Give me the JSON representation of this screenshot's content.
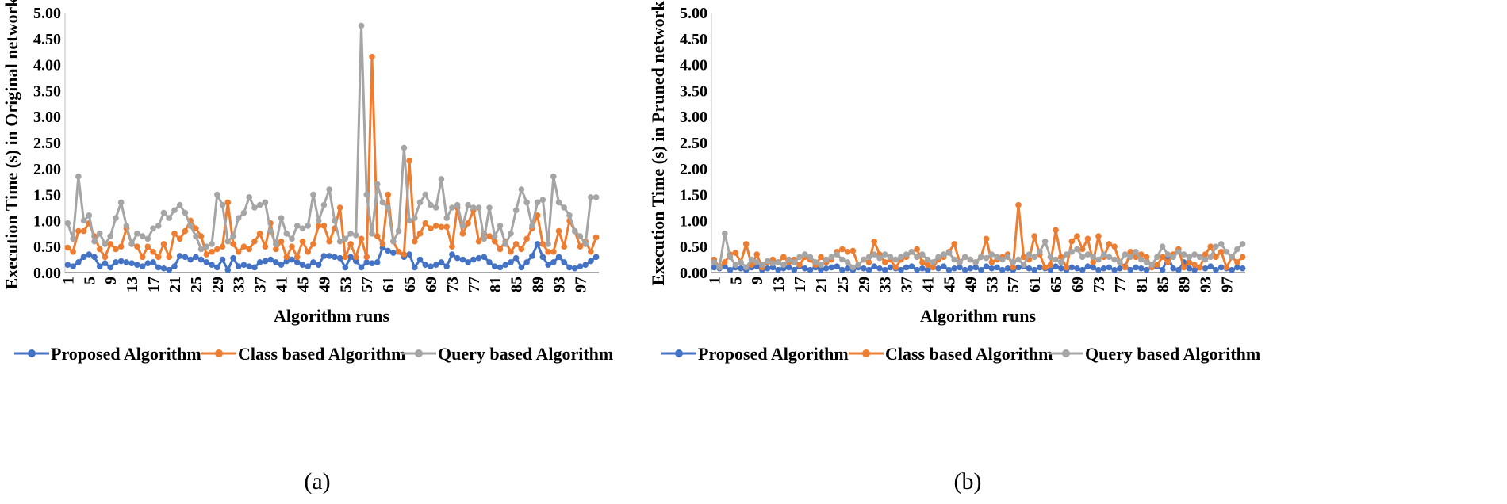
{
  "chart_data": [
    {
      "type": "line",
      "panel_label": "(a)",
      "title": "",
      "xlabel": "Algorithm runs",
      "ylabel": "Execution Time (s) in Original network",
      "ylim": [
        0,
        5
      ],
      "yticks": [
        "0.00",
        "0.50",
        "1.00",
        "1.50",
        "2.00",
        "2.50",
        "3.00",
        "3.50",
        "4.00",
        "4.50",
        "5.00"
      ],
      "xticks": [
        "1",
        "5",
        "9",
        "13",
        "17",
        "21",
        "25",
        "29",
        "33",
        "37",
        "41",
        "45",
        "49",
        "53",
        "57",
        "61",
        "65",
        "69",
        "73",
        "77",
        "81",
        "85",
        "89",
        "93",
        "97"
      ],
      "x_count": 100,
      "legend_position": "bottom",
      "series": [
        {
          "name": "Proposed Algorithm",
          "color": "#4472C4",
          "values": [
            0.15,
            0.12,
            0.2,
            0.3,
            0.35,
            0.3,
            0.12,
            0.18,
            0.1,
            0.2,
            0.22,
            0.2,
            0.18,
            0.15,
            0.12,
            0.18,
            0.2,
            0.1,
            0.08,
            0.05,
            0.12,
            0.32,
            0.3,
            0.25,
            0.3,
            0.25,
            0.2,
            0.15,
            0.1,
            0.25,
            0.05,
            0.28,
            0.12,
            0.15,
            0.12,
            0.1,
            0.2,
            0.22,
            0.25,
            0.2,
            0.15,
            0.22,
            0.25,
            0.2,
            0.15,
            0.12,
            0.2,
            0.15,
            0.32,
            0.32,
            0.3,
            0.28,
            0.1,
            0.3,
            0.22,
            0.1,
            0.2,
            0.18,
            0.2,
            0.48,
            0.42,
            0.38,
            0.4,
            0.3,
            0.35,
            0.1,
            0.25,
            0.15,
            0.12,
            0.15,
            0.2,
            0.12,
            0.35,
            0.28,
            0.25,
            0.2,
            0.25,
            0.28,
            0.3,
            0.2,
            0.12,
            0.1,
            0.15,
            0.2,
            0.28,
            0.1,
            0.2,
            0.32,
            0.55,
            0.3,
            0.15,
            0.2,
            0.3,
            0.2,
            0.1,
            0.08,
            0.12,
            0.15,
            0.22,
            0.3
          ]
        },
        {
          "name": "Class based Algorithm",
          "color": "#ED7D31",
          "values": [
            0.48,
            0.4,
            0.8,
            0.8,
            0.95,
            0.7,
            0.45,
            0.3,
            0.55,
            0.45,
            0.5,
            0.85,
            0.55,
            0.5,
            0.3,
            0.5,
            0.4,
            0.3,
            0.55,
            0.3,
            0.75,
            0.65,
            0.8,
            1.0,
            0.85,
            0.7,
            0.35,
            0.4,
            0.45,
            0.5,
            1.35,
            0.55,
            0.4,
            0.5,
            0.45,
            0.6,
            0.75,
            0.5,
            0.95,
            0.45,
            0.6,
            0.3,
            0.5,
            0.3,
            0.6,
            0.4,
            0.55,
            0.9,
            0.9,
            0.6,
            0.85,
            1.25,
            0.3,
            0.55,
            0.3,
            0.65,
            0.3,
            4.15,
            0.7,
            0.55,
            1.5,
            0.6,
            0.4,
            0.35,
            2.15,
            0.6,
            0.75,
            0.95,
            0.85,
            0.9,
            0.88,
            0.88,
            0.5,
            1.25,
            0.75,
            0.95,
            1.2,
            0.6,
            0.75,
            0.7,
            0.6,
            0.45,
            0.6,
            0.4,
            0.55,
            0.45,
            0.65,
            0.85,
            1.1,
            0.55,
            0.4,
            0.4,
            0.8,
            0.5,
            1.0,
            0.8,
            0.5,
            0.6,
            0.4,
            0.68
          ]
        },
        {
          "name": "Query based Algorithm",
          "color": "#A5A5A5",
          "values": [
            0.95,
            0.65,
            1.85,
            1.0,
            1.1,
            0.6,
            0.75,
            0.55,
            0.7,
            1.05,
            1.35,
            0.9,
            0.55,
            0.75,
            0.7,
            0.65,
            0.85,
            0.9,
            1.15,
            1.05,
            1.2,
            1.3,
            1.15,
            0.9,
            0.7,
            0.45,
            0.5,
            0.55,
            1.5,
            1.3,
            0.6,
            0.7,
            1.05,
            1.15,
            1.45,
            1.25,
            1.3,
            1.35,
            0.8,
            0.55,
            1.05,
            0.75,
            0.65,
            0.9,
            0.85,
            0.9,
            1.5,
            1.0,
            1.3,
            1.6,
            1.0,
            0.6,
            0.65,
            0.75,
            0.72,
            4.75,
            1.5,
            0.75,
            1.7,
            1.35,
            1.25,
            0.6,
            0.8,
            2.4,
            1.0,
            1.05,
            1.35,
            1.5,
            1.3,
            1.25,
            1.8,
            1.05,
            1.25,
            1.3,
            0.9,
            1.3,
            1.25,
            1.25,
            0.65,
            1.25,
            0.7,
            0.9,
            0.55,
            0.75,
            1.2,
            1.6,
            1.35,
            0.9,
            1.35,
            1.4,
            0.55,
            1.85,
            1.35,
            1.25,
            1.1,
            0.8,
            0.7,
            0.55,
            1.45,
            1.45
          ]
        }
      ]
    },
    {
      "type": "line",
      "panel_label": "(b)",
      "title": "",
      "xlabel": "Algorithm runs",
      "ylabel": "Execution Time (s) in Pruned network",
      "ylim": [
        0,
        5
      ],
      "yticks": [
        "0.00",
        "0.50",
        "1.00",
        "1.50",
        "2.00",
        "2.50",
        "3.00",
        "3.50",
        "4.00",
        "4.50",
        "5.00"
      ],
      "xticks": [
        "1",
        "5",
        "9",
        "13",
        "17",
        "21",
        "25",
        "29",
        "33",
        "37",
        "41",
        "45",
        "49",
        "53",
        "57",
        "61",
        "65",
        "69",
        "73",
        "77",
        "81",
        "85",
        "89",
        "93",
        "97"
      ],
      "x_count": 100,
      "legend_position": "bottom",
      "series": [
        {
          "name": "Proposed Algorithm",
          "color": "#4472C4",
          "values": [
            0.1,
            0.08,
            0.12,
            0.05,
            0.1,
            0.08,
            0.05,
            0.1,
            0.12,
            0.05,
            0.08,
            0.1,
            0.05,
            0.08,
            0.1,
            0.05,
            0.12,
            0.08,
            0.05,
            0.1,
            0.05,
            0.08,
            0.1,
            0.12,
            0.05,
            0.08,
            0.05,
            0.1,
            0.08,
            0.05,
            0.12,
            0.08,
            0.05,
            0.1,
            0.08,
            0.05,
            0.1,
            0.12,
            0.05,
            0.08,
            0.05,
            0.1,
            0.08,
            0.12,
            0.05,
            0.08,
            0.1,
            0.05,
            0.08,
            0.1,
            0.05,
            0.12,
            0.08,
            0.1,
            0.05,
            0.08,
            0.05,
            0.1,
            0.12,
            0.08,
            0.05,
            0.1,
            0.08,
            0.05,
            0.12,
            0.08,
            0.05,
            0.1,
            0.08,
            0.05,
            0.12,
            0.1,
            0.05,
            0.08,
            0.1,
            0.05,
            0.08,
            0.12,
            0.05,
            0.1,
            0.08,
            0.05,
            0.1,
            0.12,
            0.05,
            0.3,
            0.08,
            0.05,
            0.2,
            0.08,
            0.05,
            0.1,
            0.08,
            0.12,
            0.05,
            0.1,
            0.08,
            0.05,
            0.1,
            0.08
          ]
        },
        {
          "name": "Class based Algorithm",
          "color": "#ED7D31",
          "values": [
            0.25,
            0.1,
            0.2,
            0.35,
            0.38,
            0.2,
            0.55,
            0.15,
            0.35,
            0.1,
            0.2,
            0.25,
            0.2,
            0.3,
            0.2,
            0.25,
            0.15,
            0.3,
            0.25,
            0.15,
            0.3,
            0.2,
            0.25,
            0.4,
            0.45,
            0.4,
            0.42,
            0.15,
            0.25,
            0.2,
            0.6,
            0.35,
            0.2,
            0.25,
            0.1,
            0.25,
            0.3,
            0.4,
            0.45,
            0.2,
            0.15,
            0.1,
            0.25,
            0.3,
            0.4,
            0.55,
            0.2,
            0.3,
            0.25,
            0.2,
            0.3,
            0.65,
            0.2,
            0.25,
            0.3,
            0.35,
            0.1,
            1.3,
            0.3,
            0.25,
            0.7,
            0.35,
            0.1,
            0.15,
            0.82,
            0.3,
            0.1,
            0.6,
            0.7,
            0.45,
            0.65,
            0.2,
            0.7,
            0.3,
            0.55,
            0.5,
            0.2,
            0.1,
            0.4,
            0.3,
            0.35,
            0.3,
            0.1,
            0.15,
            0.3,
            0.2,
            0.35,
            0.45,
            0.1,
            0.2,
            0.15,
            0.1,
            0.35,
            0.5,
            0.3,
            0.4,
            0.1,
            0.3,
            0.2,
            0.3
          ]
        },
        {
          "name": "Query based Algorithm",
          "color": "#A5A5A5",
          "values": [
            0.2,
            0.1,
            0.75,
            0.3,
            0.15,
            0.2,
            0.1,
            0.25,
            0.2,
            0.15,
            0.22,
            0.18,
            0.2,
            0.15,
            0.25,
            0.2,
            0.3,
            0.35,
            0.3,
            0.2,
            0.15,
            0.25,
            0.3,
            0.35,
            0.25,
            0.2,
            0.1,
            0.15,
            0.25,
            0.3,
            0.35,
            0.28,
            0.35,
            0.3,
            0.25,
            0.3,
            0.35,
            0.4,
            0.3,
            0.35,
            0.25,
            0.2,
            0.3,
            0.35,
            0.38,
            0.25,
            0.2,
            0.3,
            0.25,
            0.2,
            0.3,
            0.28,
            0.35,
            0.3,
            0.25,
            0.3,
            0.2,
            0.25,
            0.15,
            0.35,
            0.3,
            0.4,
            0.6,
            0.3,
            0.25,
            0.2,
            0.35,
            0.4,
            0.45,
            0.3,
            0.35,
            0.3,
            0.25,
            0.35,
            0.3,
            0.25,
            0.2,
            0.35,
            0.3,
            0.4,
            0.25,
            0.2,
            0.15,
            0.3,
            0.5,
            0.35,
            0.3,
            0.4,
            0.35,
            0.3,
            0.35,
            0.3,
            0.25,
            0.3,
            0.5,
            0.55,
            0.4,
            0.3,
            0.45,
            0.55
          ]
        }
      ]
    }
  ]
}
